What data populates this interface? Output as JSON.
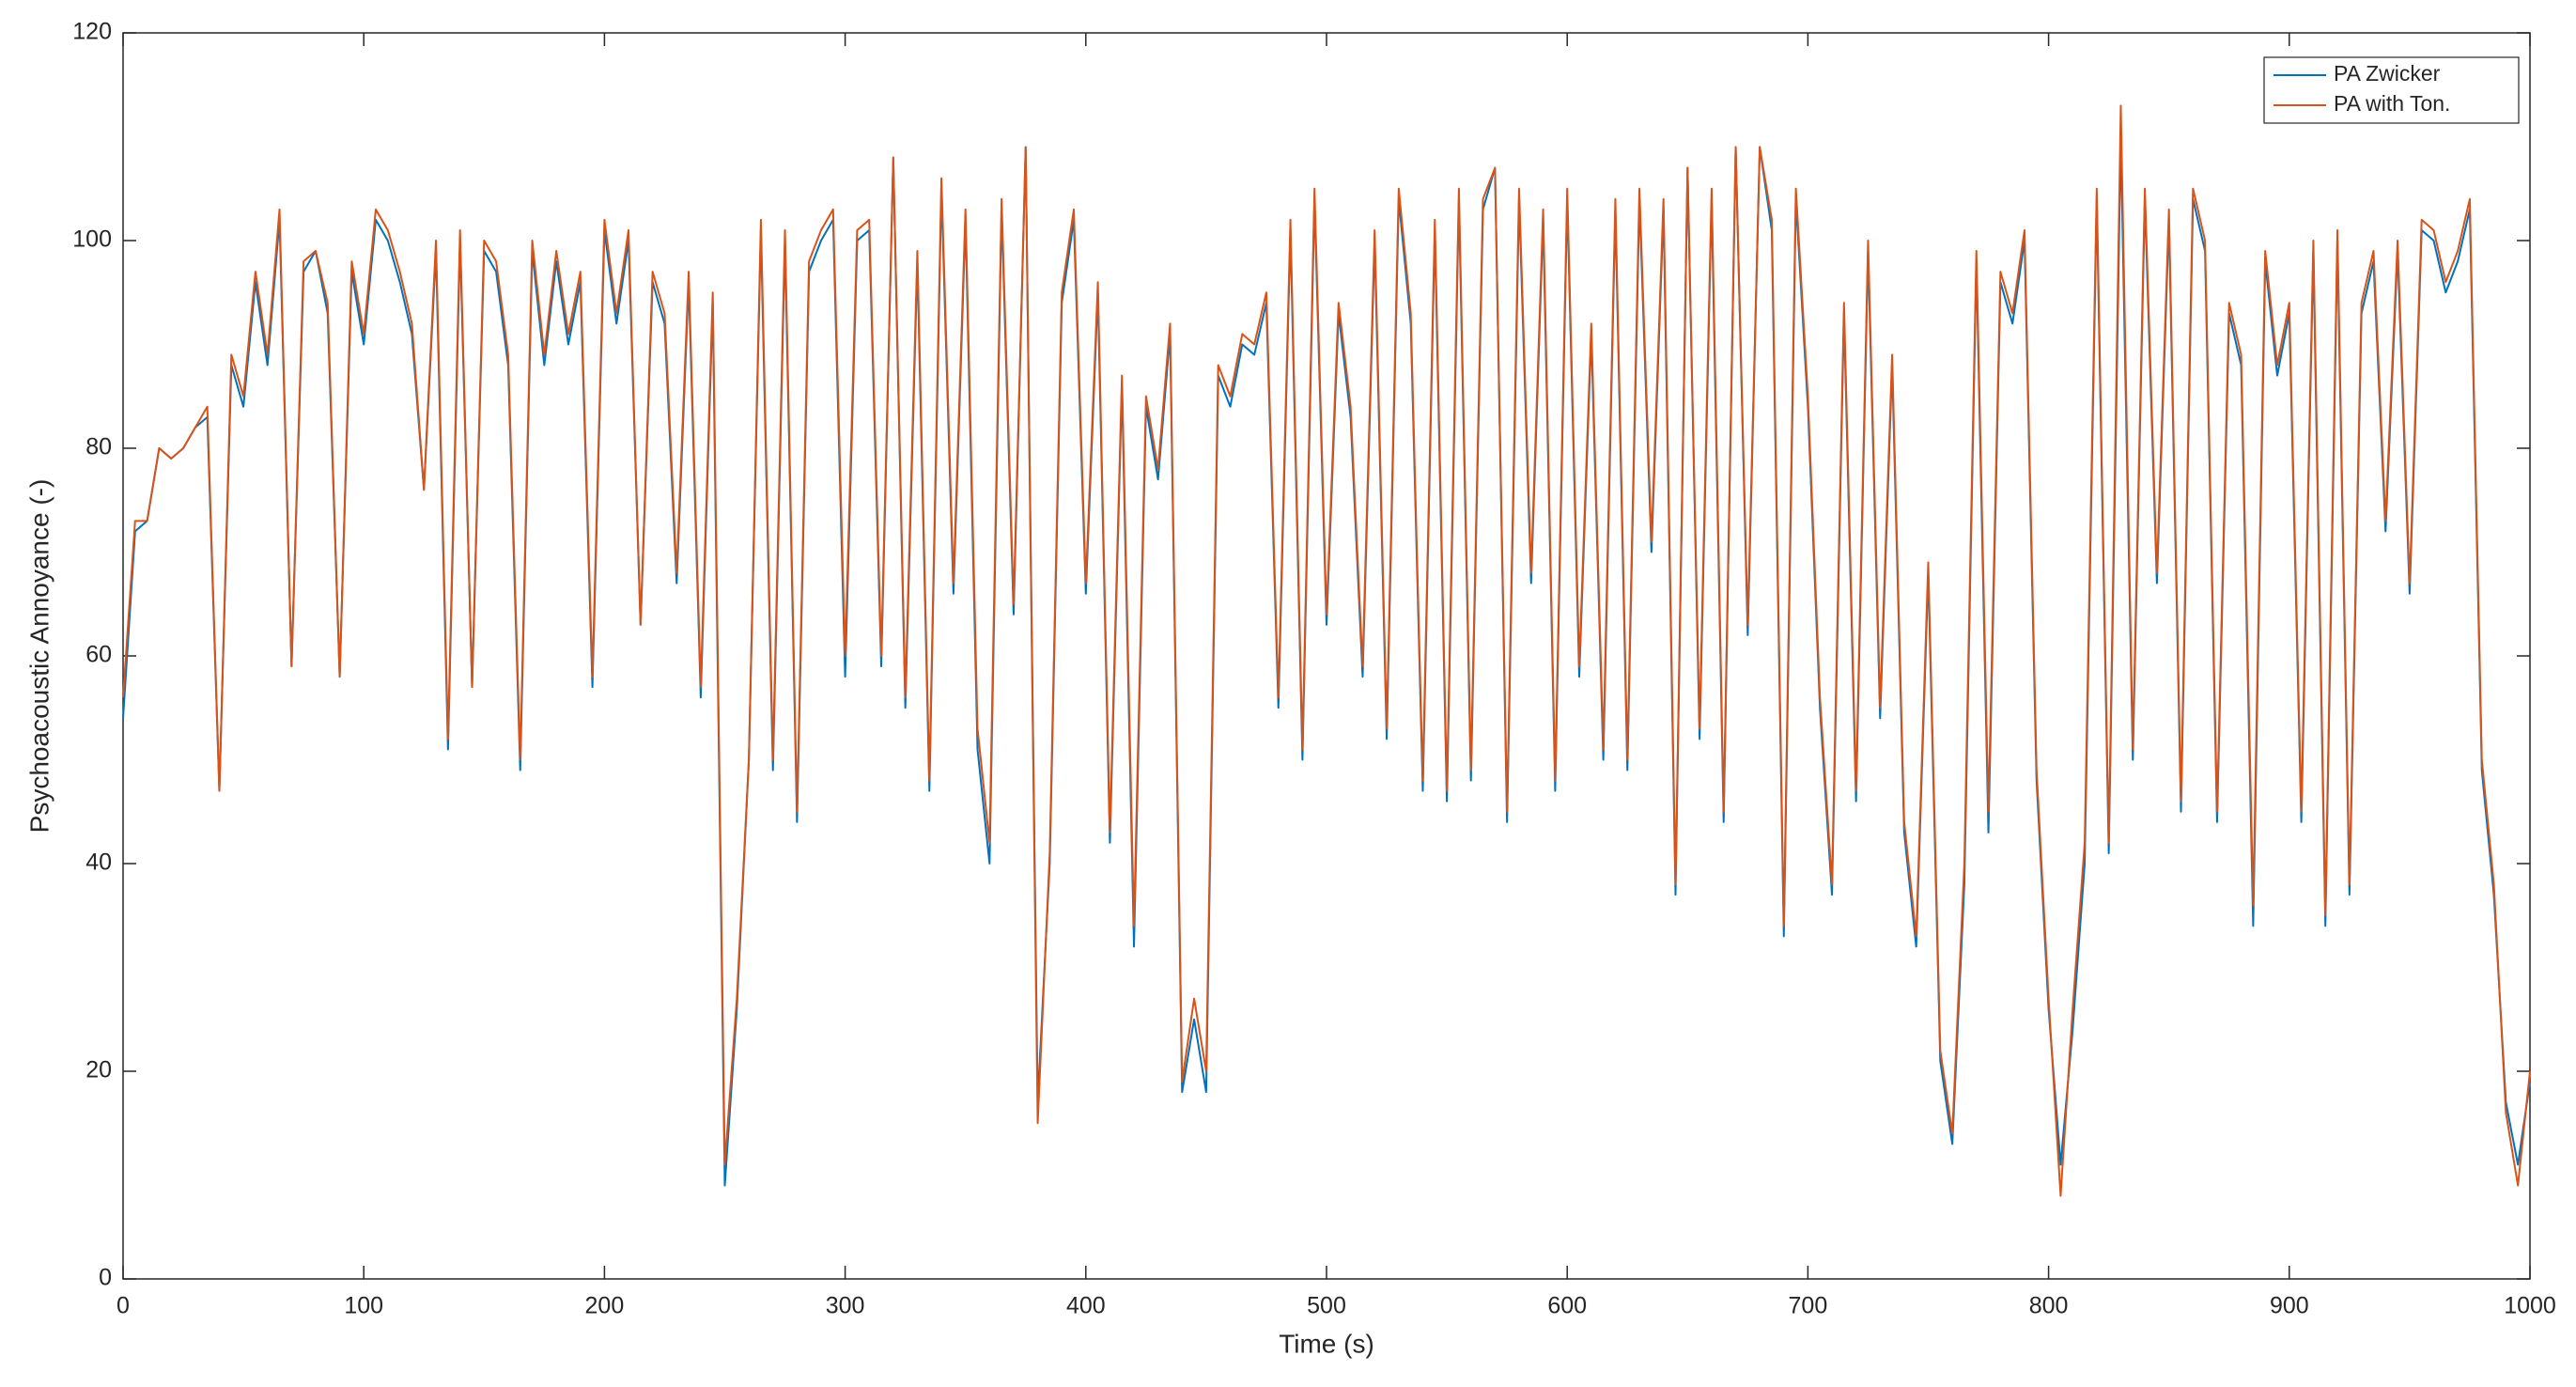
{
  "chart_data": {
    "type": "line",
    "xlabel": "Time (s)",
    "ylabel": "Psychoacoustic Annoyance (-)",
    "x": [
      0,
      5,
      10,
      15,
      20,
      25,
      30,
      35,
      40,
      45,
      50,
      55,
      60,
      65,
      70,
      75,
      80,
      85,
      90,
      95,
      100,
      105,
      110,
      115,
      120,
      125,
      130,
      135,
      140,
      145,
      150,
      155,
      160,
      165,
      170,
      175,
      180,
      185,
      190,
      195,
      200,
      205,
      210,
      215,
      220,
      225,
      230,
      235,
      240,
      245,
      250,
      255,
      260,
      265,
      270,
      275,
      280,
      285,
      290,
      295,
      300,
      305,
      310,
      315,
      320,
      325,
      330,
      335,
      340,
      345,
      350,
      355,
      360,
      365,
      370,
      375,
      380,
      385,
      390,
      395,
      400,
      405,
      410,
      415,
      420,
      425,
      430,
      435,
      440,
      445,
      450,
      455,
      460,
      465,
      470,
      475,
      480,
      485,
      490,
      495,
      500,
      505,
      510,
      515,
      520,
      525,
      530,
      535,
      540,
      545,
      550,
      555,
      560,
      565,
      570,
      575,
      580,
      585,
      590,
      595,
      600,
      605,
      610,
      615,
      620,
      625,
      630,
      635,
      640,
      645,
      650,
      655,
      660,
      665,
      670,
      675,
      680,
      685,
      690,
      695,
      700,
      705,
      710,
      715,
      720,
      725,
      730,
      735,
      740,
      745,
      750,
      755,
      760,
      765,
      770,
      775,
      780,
      785,
      790,
      795,
      800,
      805,
      810,
      815,
      820,
      825,
      830,
      835,
      840,
      845,
      850,
      855,
      860,
      865,
      870,
      875,
      880,
      885,
      890,
      895,
      900,
      905,
      910,
      915,
      920,
      925,
      930,
      935,
      940,
      945,
      950,
      955,
      960,
      965,
      970,
      975,
      980,
      985,
      990,
      995,
      1000
    ],
    "series": [
      {
        "name": "PA Zwicker",
        "color": "#0072BD",
        "values": [
          54,
          72,
          73,
          80,
          79,
          80,
          82,
          83,
          47,
          88,
          84,
          96,
          88,
          102,
          59,
          97,
          99,
          93,
          58,
          97,
          90,
          102,
          100,
          96,
          91,
          76,
          99,
          51,
          100,
          57,
          99,
          97,
          88,
          49,
          99,
          88,
          98,
          90,
          96,
          57,
          101,
          92,
          100,
          63,
          96,
          92,
          67,
          96,
          56,
          94,
          9,
          26,
          50,
          101,
          49,
          100,
          44,
          97,
          100,
          102,
          58,
          100,
          101,
          59,
          108,
          55,
          98,
          47,
          105,
          66,
          102,
          51,
          40,
          103,
          64,
          109,
          17,
          40,
          94,
          102,
          66,
          95,
          42,
          86,
          32,
          84,
          77,
          91,
          18,
          25,
          18,
          87,
          84,
          90,
          89,
          94,
          55,
          101,
          50,
          104,
          63,
          93,
          83,
          58,
          100,
          52,
          104,
          92,
          47,
          101,
          46,
          104,
          48,
          103,
          107,
          44,
          104,
          67,
          102,
          47,
          104,
          58,
          91,
          50,
          103,
          49,
          104,
          70,
          103,
          37,
          107,
          52,
          104,
          44,
          109,
          62,
          109,
          101,
          33,
          104,
          84,
          55,
          37,
          93,
          46,
          99,
          54,
          88,
          43,
          32,
          68,
          21,
          13,
          38,
          98,
          43,
          96,
          92,
          100,
          48,
          26,
          11,
          24,
          40,
          104,
          41,
          110,
          50,
          104,
          67,
          102,
          45,
          104,
          99,
          44,
          93,
          88,
          34,
          98,
          87,
          93,
          44,
          99,
          34,
          100,
          37,
          93,
          98,
          72,
          99,
          66,
          101,
          100,
          95,
          98,
          103,
          49,
          37,
          17,
          11,
          19
        ]
      },
      {
        "name": "PA with Ton.",
        "color": "#D95319",
        "values": [
          56,
          73,
          73,
          80,
          79,
          80,
          82,
          84,
          47,
          89,
          85,
          97,
          89,
          103,
          59,
          98,
          99,
          94,
          58,
          98,
          91,
          103,
          101,
          97,
          92,
          76,
          100,
          52,
          101,
          57,
          100,
          98,
          89,
          50,
          100,
          89,
          99,
          91,
          97,
          58,
          102,
          93,
          101,
          63,
          97,
          93,
          68,
          97,
          57,
          95,
          11,
          27,
          50,
          102,
          50,
          101,
          45,
          98,
          101,
          103,
          60,
          101,
          102,
          60,
          108,
          56,
          99,
          48,
          106,
          67,
          103,
          53,
          42,
          104,
          65,
          109,
          15,
          41,
          95,
          103,
          67,
          96,
          43,
          87,
          34,
          85,
          78,
          92,
          19,
          27,
          20,
          88,
          85,
          91,
          90,
          95,
          56,
          102,
          51,
          105,
          64,
          94,
          84,
          59,
          101,
          53,
          105,
          93,
          48,
          102,
          47,
          105,
          49,
          104,
          107,
          45,
          105,
          68,
          103,
          48,
          105,
          59,
          92,
          51,
          104,
          50,
          105,
          71,
          104,
          38,
          107,
          53,
          105,
          45,
          109,
          63,
          109,
          102,
          34,
          105,
          85,
          56,
          38,
          94,
          47,
          100,
          55,
          89,
          44,
          33,
          69,
          22,
          14,
          40,
          99,
          45,
          97,
          93,
          101,
          49,
          27,
          8,
          26,
          42,
          105,
          42,
          113,
          51,
          105,
          68,
          103,
          46,
          105,
          100,
          45,
          94,
          89,
          36,
          99,
          88,
          94,
          45,
          100,
          35,
          101,
          38,
          94,
          99,
          73,
          100,
          67,
          102,
          101,
          96,
          99,
          104,
          50,
          38,
          16,
          9,
          20
        ]
      }
    ],
    "xlim": [
      0,
      1000
    ],
    "ylim": [
      0,
      120
    ],
    "xticks": [
      0,
      100,
      200,
      300,
      400,
      500,
      600,
      700,
      800,
      900,
      1000
    ],
    "yticks": [
      0,
      20,
      40,
      60,
      80,
      100,
      120
    ],
    "grid": false,
    "legend": "upper right"
  }
}
